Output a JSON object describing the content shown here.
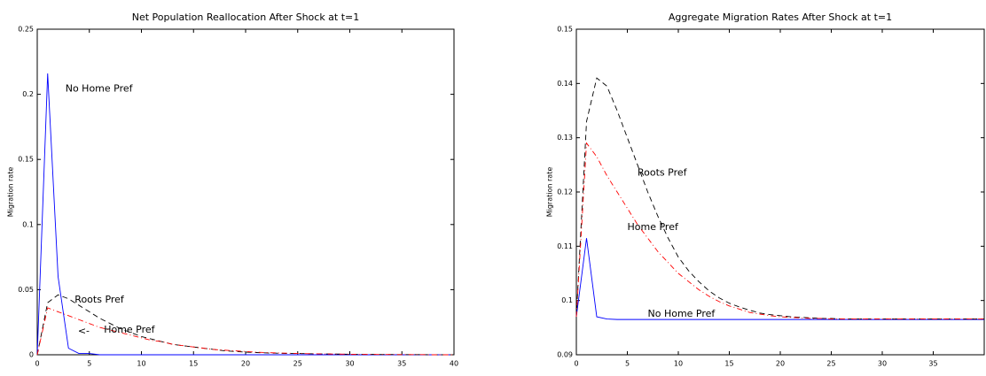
{
  "chart_data": [
    {
      "type": "line",
      "title": "Net Population Reallocation After Shock at t=1",
      "y_label": "Migration rate",
      "x": [
        0,
        1,
        2,
        3,
        4,
        5,
        6,
        7,
        8,
        9,
        10,
        11,
        12,
        13,
        14,
        15,
        16,
        17,
        18,
        19,
        20,
        21,
        22,
        23,
        24,
        25,
        26,
        27,
        28,
        29,
        30,
        31,
        32,
        33,
        34,
        35,
        36,
        37,
        38,
        39,
        40
      ],
      "series": [
        {
          "name": "No Home Pref",
          "color": "#0000ff",
          "linestyle": "solid",
          "values": [
            0,
            0.216,
            0.06,
            0.005,
            0.001,
            0.001,
            0,
            0,
            0,
            0,
            0,
            0,
            0,
            0,
            0,
            0,
            0,
            0,
            0,
            0,
            0,
            0,
            0,
            0,
            0,
            0,
            0,
            0,
            0,
            0,
            0,
            0,
            0,
            0,
            0,
            0,
            0,
            0,
            0,
            0,
            0
          ]
        },
        {
          "name": "Roots Pref",
          "color": "#000000",
          "linestyle": "dashed",
          "values": [
            0,
            0.04,
            0.046,
            0.043,
            0.038,
            0.033,
            0.028,
            0.024,
            0.02,
            0.017,
            0.014,
            0.012,
            0.01,
            0.008,
            0.007,
            0.006,
            0.005,
            0.004,
            0.003,
            0.0025,
            0.002,
            0.0017,
            0.0014,
            0.0012,
            0.001,
            0.001,
            0.0008,
            0.0007,
            0.0006,
            0.0005,
            0.0004,
            0.0003,
            0.0003,
            0.0002,
            0.0002,
            0.0001,
            0.0001,
            0.0001,
            0,
            0,
            0
          ]
        },
        {
          "name": "Home Pref",
          "color": "#ff0000",
          "linestyle": "dashdot",
          "values": [
            0,
            0.036,
            0.033,
            0.03,
            0.027,
            0.024,
            0.021,
            0.019,
            0.017,
            0.015,
            0.013,
            0.011,
            0.01,
            0.008,
            0.007,
            0.006,
            0.005,
            0.004,
            0.0035,
            0.003,
            0.0025,
            0.002,
            0.0017,
            0.0014,
            0.0012,
            0.001,
            0.0008,
            0.0007,
            0.0006,
            0.0005,
            0.0004,
            0.0003,
            0.0003,
            0.0002,
            0.0002,
            0.0001,
            0.0001,
            0.0001,
            0,
            0,
            0
          ]
        }
      ],
      "annotations": [
        {
          "text": "No Home Pref",
          "x": 2.7,
          "y": 0.204
        },
        {
          "text": "Roots Pref",
          "x": 3.6,
          "y": 0.042
        },
        {
          "text": "<-",
          "x": 3.9,
          "y": 0.018
        },
        {
          "text": "Home Pref",
          "x": 6.4,
          "y": 0.019
        }
      ],
      "xlim": [
        0,
        40
      ],
      "xticks": [
        0,
        5,
        10,
        15,
        20,
        25,
        30,
        35,
        40
      ],
      "ylim": [
        0,
        0.25
      ],
      "yticks": [
        0,
        0.05,
        0.1,
        0.15,
        0.2,
        0.25
      ]
    },
    {
      "type": "line",
      "title": "Aggregate Migration Rates After Shock at t=1",
      "y_label": "Migration rate",
      "x": [
        0,
        1,
        2,
        3,
        4,
        5,
        6,
        7,
        8,
        9,
        10,
        11,
        12,
        13,
        14,
        15,
        16,
        17,
        18,
        19,
        20,
        21,
        22,
        23,
        24,
        25,
        26,
        27,
        28,
        29,
        30,
        31,
        32,
        33,
        34,
        35,
        36,
        37,
        38,
        39,
        40
      ],
      "series": [
        {
          "name": "No Home Pref",
          "color": "#0000ff",
          "linestyle": "solid",
          "values": [
            0.097,
            0.1115,
            0.097,
            0.0966,
            0.0965,
            0.0965,
            0.0965,
            0.0965,
            0.0965,
            0.0965,
            0.0965,
            0.0965,
            0.0965,
            0.0965,
            0.0965,
            0.0965,
            0.0965,
            0.0965,
            0.0965,
            0.0965,
            0.0965,
            0.0965,
            0.0965,
            0.0965,
            0.0965,
            0.0965,
            0.0965,
            0.0965,
            0.0965,
            0.0965,
            0.0965,
            0.0965,
            0.0965,
            0.0965,
            0.0965,
            0.0965,
            0.0965,
            0.0965,
            0.0965,
            0.0965,
            0.0965
          ]
        },
        {
          "name": "Roots Pref",
          "color": "#000000",
          "linestyle": "dashed",
          "values": [
            0.097,
            0.133,
            0.141,
            0.1395,
            0.135,
            0.13,
            0.125,
            0.12,
            0.1155,
            0.1115,
            0.108,
            0.1055,
            0.1035,
            0.1018,
            0.1005,
            0.0995,
            0.0988,
            0.0982,
            0.0977,
            0.0974,
            0.0972,
            0.097,
            0.0969,
            0.0968,
            0.0967,
            0.0967,
            0.0966,
            0.0966,
            0.0966,
            0.0966,
            0.0966,
            0.0966,
            0.0966,
            0.0966,
            0.0966,
            0.0966,
            0.0966,
            0.0966,
            0.0966,
            0.0966,
            0.0966
          ]
        },
        {
          "name": "Home Pref",
          "color": "#ff0000",
          "linestyle": "dashdot",
          "values": [
            0.097,
            0.129,
            0.1265,
            0.123,
            0.12,
            0.117,
            0.114,
            0.1115,
            0.109,
            0.107,
            0.105,
            0.1035,
            0.102,
            0.1008,
            0.0998,
            0.099,
            0.0984,
            0.0978,
            0.0975,
            0.0972,
            0.097,
            0.0969,
            0.0968,
            0.0967,
            0.0967,
            0.0966,
            0.0966,
            0.0966,
            0.0966,
            0.0966,
            0.0966,
            0.0966,
            0.0966,
            0.0966,
            0.0966,
            0.0966,
            0.0966,
            0.0966,
            0.0966,
            0.0966,
            0.0966
          ]
        }
      ],
      "annotations": [
        {
          "text": "Roots Pref",
          "x": 6,
          "y": 0.1235
        },
        {
          "text": "Home Pref",
          "x": 5,
          "y": 0.1135
        },
        {
          "text": "No Home Pref",
          "x": 7,
          "y": 0.0975
        }
      ],
      "xlim": [
        0,
        40
      ],
      "xticks": [
        0,
        5,
        10,
        15,
        20,
        25,
        30,
        35
      ],
      "ylim": [
        0.09,
        0.15
      ],
      "yticks": [
        0.09,
        0.1,
        0.11,
        0.12,
        0.13,
        0.14,
        0.15
      ]
    }
  ]
}
